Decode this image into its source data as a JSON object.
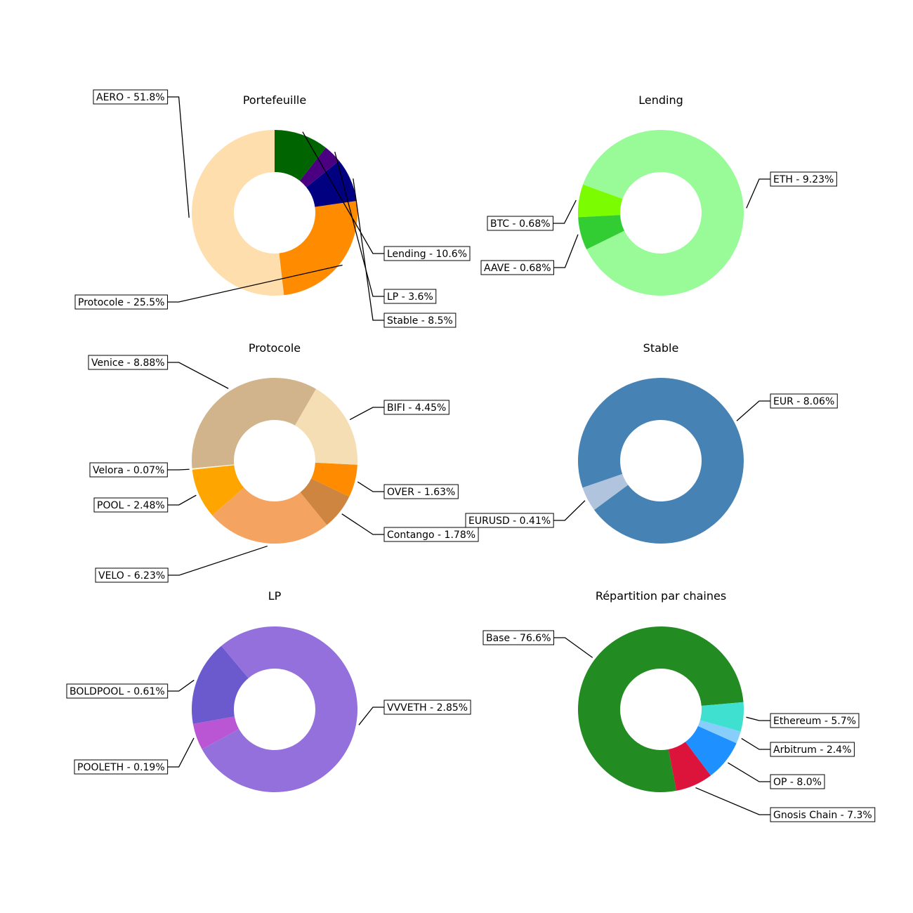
{
  "chart_data": [
    {
      "type": "pie",
      "donut": true,
      "title": "Portefeuille",
      "start_angle_deg": 90,
      "slices": [
        {
          "label": "AERO - 51.8%",
          "value": 51.8,
          "color": "#FFDEAD"
        },
        {
          "label": "Protocole - 25.5%",
          "value": 25.5,
          "color": "#FF8C00"
        },
        {
          "label": "Stable - 8.5%",
          "value": 8.5,
          "color": "#000080"
        },
        {
          "label": "LP - 3.6%",
          "value": 3.6,
          "color": "#4B0082"
        },
        {
          "label": "Lending - 10.6%",
          "value": 10.6,
          "color": "#006400"
        }
      ]
    },
    {
      "type": "pie",
      "donut": true,
      "title": "Lending",
      "start_angle_deg": 160,
      "slices": [
        {
          "label": "BTC - 0.68%",
          "value": 0.68,
          "color": "#7CFC00"
        },
        {
          "label": "AAVE - 0.68%",
          "value": 0.68,
          "color": "#32CD32"
        },
        {
          "label": "ETH - 9.23%",
          "value": 9.23,
          "color": "#98FB98"
        }
      ]
    },
    {
      "type": "pie",
      "donut": true,
      "title": "Protocole",
      "start_angle_deg": 60,
      "slices": [
        {
          "label": "Venice - 8.88%",
          "value": 8.88,
          "color": "#D2B48C"
        },
        {
          "label": "Velora - 0.07%",
          "value": 0.07,
          "color": "#F5F5DC"
        },
        {
          "label": "POOL - 2.48%",
          "value": 2.48,
          "color": "#FFA500"
        },
        {
          "label": "VELO - 6.23%",
          "value": 6.23,
          "color": "#F4A460"
        },
        {
          "label": "Contango - 1.78%",
          "value": 1.78,
          "color": "#CD853F"
        },
        {
          "label": "OVER - 1.63%",
          "value": 1.63,
          "color": "#FF8C00"
        },
        {
          "label": "BIFI - 4.45%",
          "value": 4.45,
          "color": "#F5DEB3"
        }
      ]
    },
    {
      "type": "pie",
      "donut": true,
      "title": "Stable",
      "start_angle_deg": 199,
      "slices": [
        {
          "label": "EURUSD - 0.41%",
          "value": 0.41,
          "color": "#B0C4DE"
        },
        {
          "label": "EUR - 8.06%",
          "value": 8.06,
          "color": "#4682B4"
        }
      ]
    },
    {
      "type": "pie",
      "donut": true,
      "title": "LP",
      "start_angle_deg": 130,
      "slices": [
        {
          "label": "BOLDPOOL - 0.61%",
          "value": 0.61,
          "color": "#6A5ACD"
        },
        {
          "label": "POOLETH - 0.19%",
          "value": 0.19,
          "color": "#BA55D3"
        },
        {
          "label": "VVVETH - 2.85%",
          "value": 2.85,
          "color": "#9370DB"
        }
      ]
    },
    {
      "type": "pie",
      "donut": true,
      "title": "Répartition par chaines",
      "start_angle_deg": 5,
      "slices": [
        {
          "label": "Base - 76.6%",
          "value": 76.6,
          "color": "#228B22"
        },
        {
          "label": "Gnosis Chain - 7.3%",
          "value": 7.3,
          "color": "#DC143C"
        },
        {
          "label": "OP - 8.0%",
          "value": 8.0,
          "color": "#1E90FF"
        },
        {
          "label": "Arbitrum - 2.4%",
          "value": 2.4,
          "color": "#87CEFA"
        },
        {
          "label": "Ethereum - 5.7%",
          "value": 5.7,
          "color": "#40E0D0"
        }
      ]
    }
  ]
}
